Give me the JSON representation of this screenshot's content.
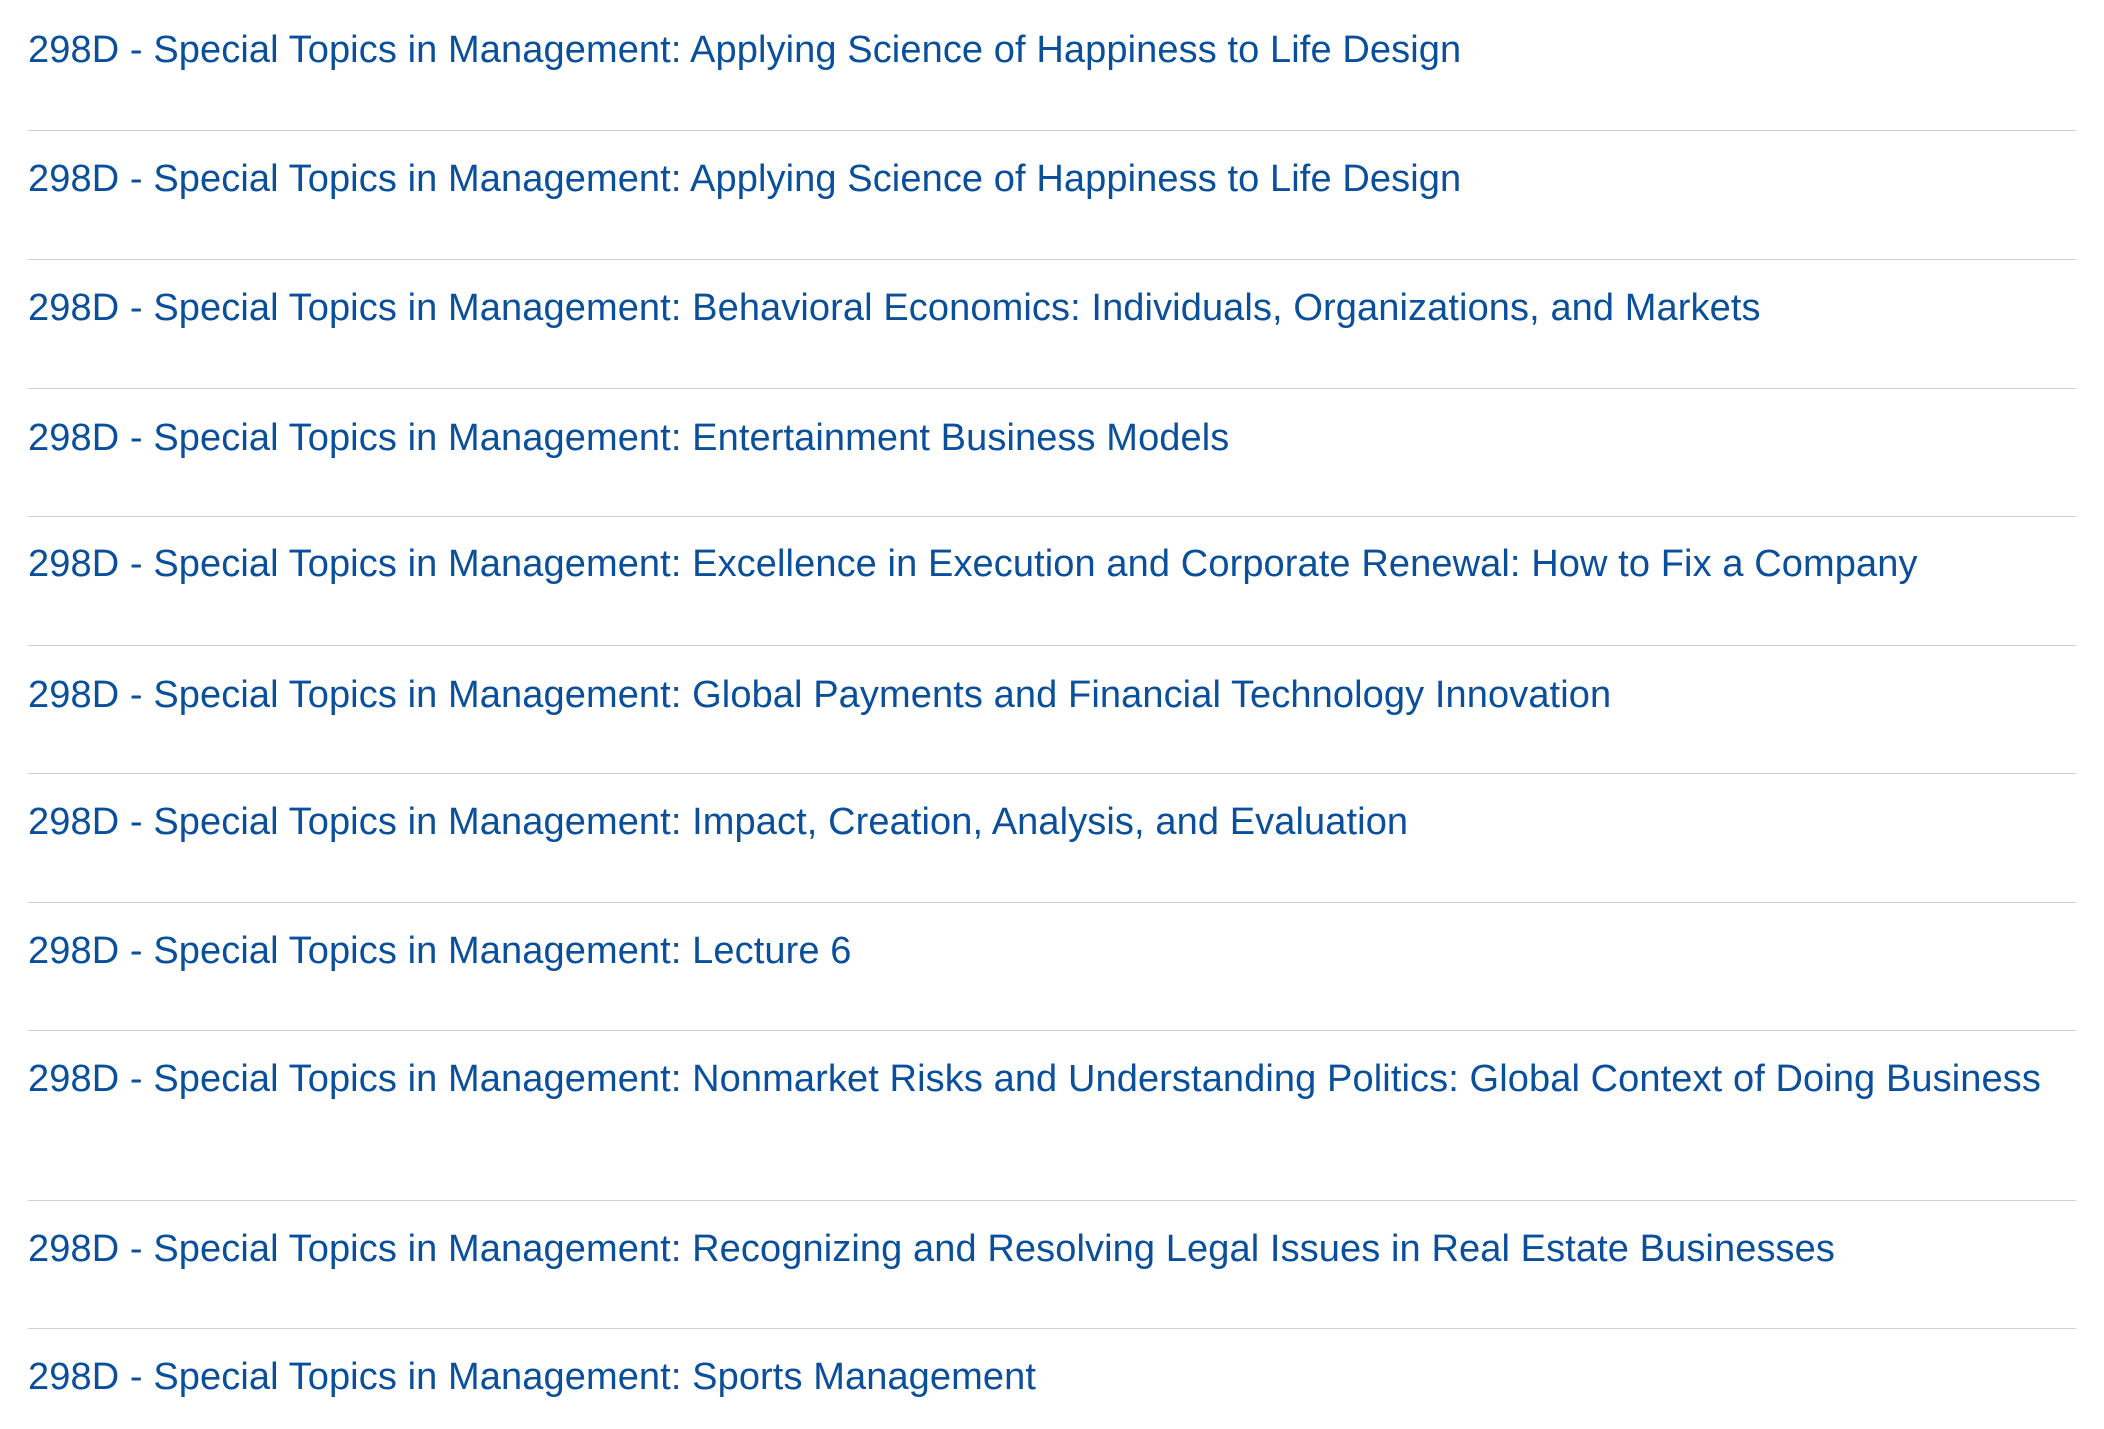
{
  "courses": [
    {
      "title": "298D - Special Topics in Management: Applying Science of Happiness to Life Design"
    },
    {
      "title": "298D - Special Topics in Management: Applying Science of Happiness to Life Design"
    },
    {
      "title": "298D - Special Topics in Management: Behavioral Economics: Individuals, Organizations, and Markets"
    },
    {
      "title": "298D - Special Topics in Management: Entertainment Business Models"
    },
    {
      "title": "298D - Special Topics in Management: Excellence in Execution and Corporate Renewal: How to Fix a Company"
    },
    {
      "title": "298D - Special Topics in Management: Global Payments and Financial Technology Innovation"
    },
    {
      "title": "298D - Special Topics in Management: Impact, Creation, Analysis, and Evaluation"
    },
    {
      "title": "298D - Special Topics in Management: Lecture 6"
    },
    {
      "title": "298D - Special Topics in Management: Nonmarket Risks and Understanding Politics: Global Context of Doing Business"
    },
    {
      "title": "298D - Special Topics in Management: Recognizing and Resolving Legal Issues in Real Estate Businesses"
    },
    {
      "title": "298D - Special Topics in Management: Sports Management"
    }
  ],
  "colors": {
    "link": "#0a4f9c",
    "divider": "#d0d0d0",
    "background": "#ffffff"
  }
}
